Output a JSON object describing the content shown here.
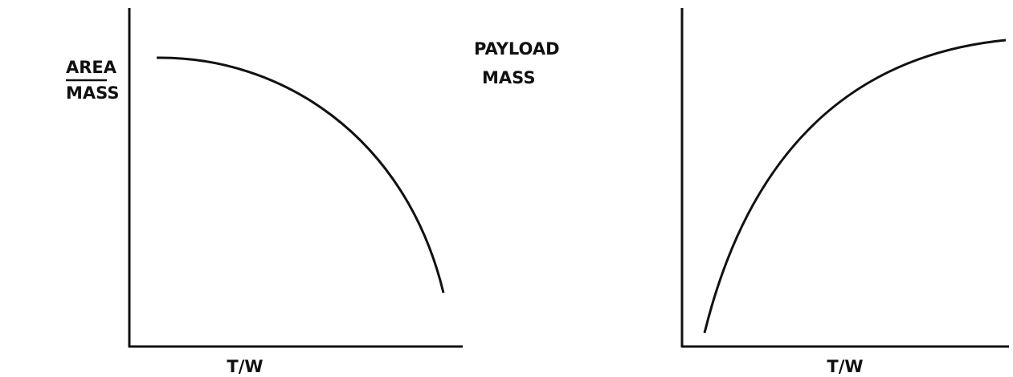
{
  "panels": [
    {
      "y_label": [
        "AREA",
        "MASS"
      ],
      "x_label": "T/W"
    },
    {
      "y_label": [
        "PAYLOAD",
        "MASS"
      ],
      "x_label": "T/W"
    }
  ]
}
